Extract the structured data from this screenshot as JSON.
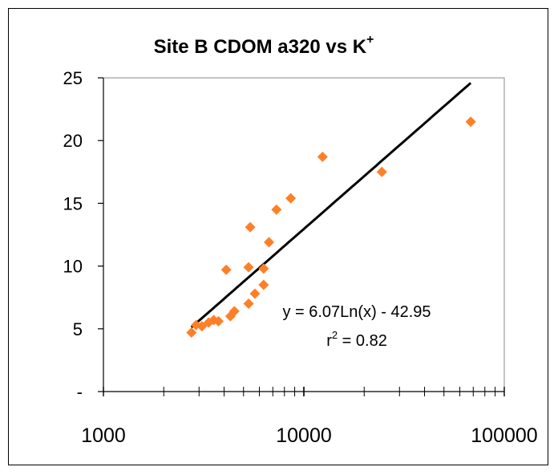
{
  "chart_data": {
    "type": "scatter",
    "title": {
      "main": "Site B CDOM a320 vs  K",
      "superscript": "+"
    },
    "xlabel": "",
    "ylabel": "",
    "x_scale": "log",
    "xlim": [
      1000,
      100000
    ],
    "ylim": [
      0,
      25
    ],
    "x_tick_labels": [
      {
        "value": 1000,
        "label": "1000"
      },
      {
        "value": 10000,
        "label": "10000"
      },
      {
        "value": 100000,
        "label": "100000"
      }
    ],
    "y_tick_labels": [
      {
        "value": 0,
        "label": "-"
      },
      {
        "value": 5,
        "label": "5"
      },
      {
        "value": 10,
        "label": "10"
      },
      {
        "value": 15,
        "label": "15"
      },
      {
        "value": 20,
        "label": "20"
      },
      {
        "value": 25,
        "label": "25"
      }
    ],
    "grid": false,
    "legend": "none",
    "marker_color": "#FF7F27",
    "line_color": "#000000",
    "points": [
      {
        "x": 2750,
        "y": 4.7
      },
      {
        "x": 2900,
        "y": 5.3
      },
      {
        "x": 3100,
        "y": 5.2
      },
      {
        "x": 3350,
        "y": 5.5
      },
      {
        "x": 3550,
        "y": 5.7
      },
      {
        "x": 3750,
        "y": 5.6
      },
      {
        "x": 4100,
        "y": 9.7
      },
      {
        "x": 4300,
        "y": 6.0
      },
      {
        "x": 4500,
        "y": 6.4
      },
      {
        "x": 5300,
        "y": 7.0
      },
      {
        "x": 5300,
        "y": 9.9
      },
      {
        "x": 5400,
        "y": 13.1
      },
      {
        "x": 5700,
        "y": 7.8
      },
      {
        "x": 6300,
        "y": 9.8
      },
      {
        "x": 6300,
        "y": 8.5
      },
      {
        "x": 6700,
        "y": 11.9
      },
      {
        "x": 7300,
        "y": 14.5
      },
      {
        "x": 8600,
        "y": 15.4
      },
      {
        "x": 12400,
        "y": 18.7
      },
      {
        "x": 24500,
        "y": 17.5
      },
      {
        "x": 68000,
        "y": 21.5
      }
    ],
    "trendline": {
      "type": "log",
      "a": 6.07,
      "b": -42.95,
      "x_range": [
        2750,
        68000
      ]
    },
    "annotations": {
      "equation": "y = 6.07Ln(x) - 42.95",
      "r2_prefix": "r",
      "r2_exp": "2",
      "r2_suffix": " = 0.82"
    }
  }
}
